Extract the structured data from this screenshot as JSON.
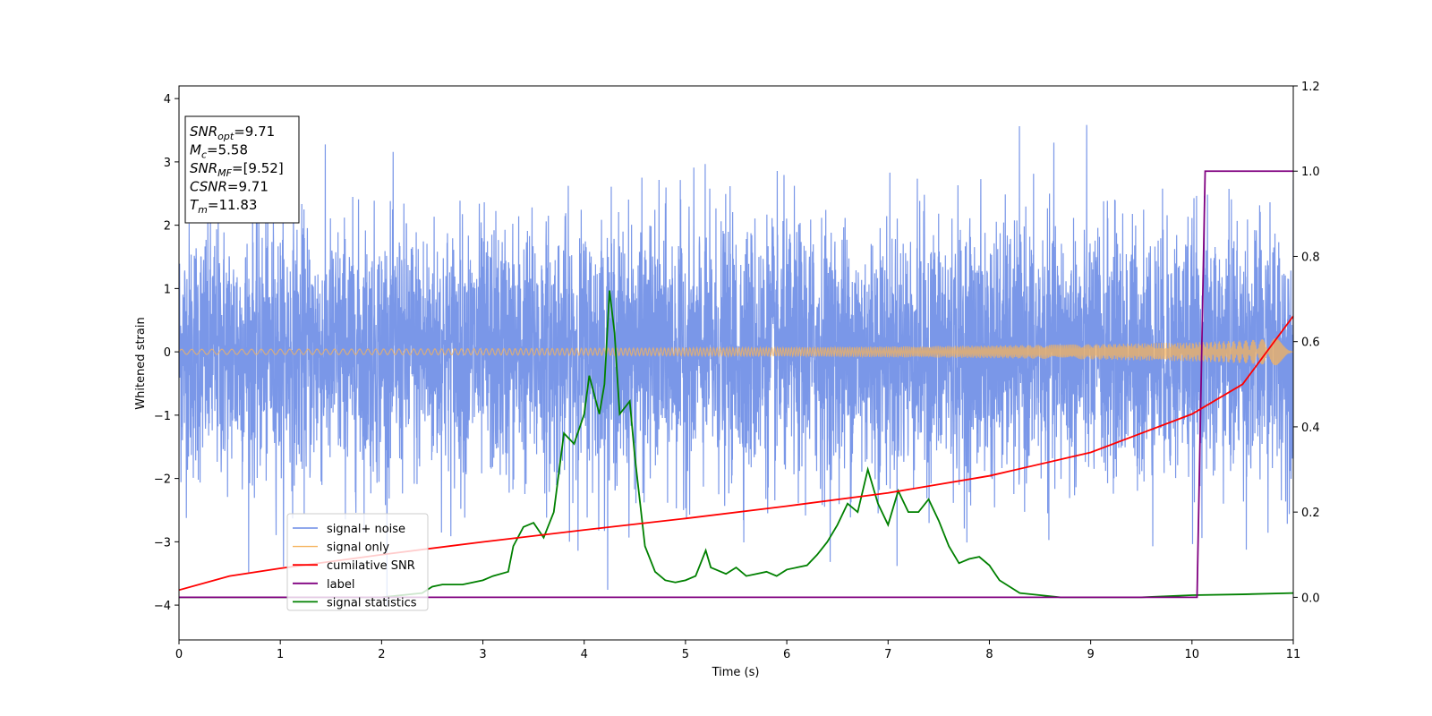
{
  "chart_data": {
    "type": "line",
    "xlabel": "Time (s)",
    "ylabel": "Whitened strain",
    "xlim": [
      0,
      11
    ],
    "ylim": [
      -4.55,
      4.2
    ],
    "y2lim": [
      -0.1,
      1.2
    ],
    "x_ticks": [
      0,
      1,
      2,
      3,
      4,
      5,
      6,
      7,
      8,
      9,
      10,
      11
    ],
    "y_ticks": [
      -4,
      -3,
      -2,
      -1,
      0,
      1,
      2,
      3,
      4
    ],
    "y2_ticks": [
      0.0,
      0.2,
      0.4,
      0.6,
      0.8,
      1.0,
      1.2
    ],
    "grid": false,
    "legend_position": "lower-left",
    "annotation": {
      "lines": [
        {
          "main": "SNR",
          "sub": "opt",
          "rest": "=9.71"
        },
        {
          "main": "M",
          "sub": "c",
          "rest": "=5.58"
        },
        {
          "main": "SNR",
          "sub": "MF",
          "rest": "=[9.52]"
        },
        {
          "main": "CSNR",
          "sub": "",
          "rest": "=9.71"
        },
        {
          "main": "T",
          "sub": "m",
          "rest": "=11.83"
        }
      ]
    },
    "series": [
      {
        "name": "signal+ noise",
        "axis": "left",
        "color": "#6b8ce6",
        "description_stats": {
          "std": 1.0,
          "min": -4.15,
          "max": 3.82
        }
      },
      {
        "name": "signal only",
        "axis": "left",
        "color": "#f5b35e",
        "envelope": {
          "x": [
            0,
            2,
            4,
            6,
            8,
            9,
            10,
            10.5,
            11
          ],
          "amplitude": [
            0.04,
            0.045,
            0.055,
            0.07,
            0.1,
            0.12,
            0.15,
            0.18,
            0.23
          ]
        }
      },
      {
        "name": "cumilative SNR",
        "axis": "right",
        "color": "#ff0000",
        "x": [
          0,
          0.5,
          1,
          2,
          3,
          4,
          5,
          6,
          7,
          8,
          9,
          10,
          10.5,
          11
        ],
        "y": [
          0.017,
          0.05,
          0.068,
          0.1,
          0.13,
          0.158,
          0.185,
          0.214,
          0.245,
          0.285,
          0.34,
          0.43,
          0.5,
          0.66
        ]
      },
      {
        "name": "label",
        "axis": "right",
        "color": "#800080",
        "x": [
          0,
          10.05,
          10.13,
          11
        ],
        "y": [
          0,
          0,
          1,
          1
        ]
      },
      {
        "name": "signal statistics",
        "axis": "right",
        "color": "#008000",
        "x": [
          0,
          1,
          2,
          2.4,
          2.5,
          2.6,
          2.8,
          3.0,
          3.1,
          3.25,
          3.3,
          3.4,
          3.5,
          3.6,
          3.7,
          3.8,
          3.9,
          4.0,
          4.05,
          4.15,
          4.2,
          4.25,
          4.3,
          4.35,
          4.45,
          4.5,
          4.6,
          4.7,
          4.8,
          4.9,
          5.0,
          5.1,
          5.2,
          5.25,
          5.3,
          5.4,
          5.5,
          5.6,
          5.7,
          5.8,
          5.9,
          6.0,
          6.1,
          6.2,
          6.3,
          6.4,
          6.5,
          6.6,
          6.7,
          6.8,
          6.9,
          7.0,
          7.1,
          7.2,
          7.3,
          7.4,
          7.5,
          7.6,
          7.7,
          7.8,
          7.9,
          8.0,
          8.1,
          8.3,
          8.5,
          8.7,
          9.0,
          9.5,
          10.0,
          10.5,
          11.0
        ],
        "y": [
          0.0,
          0.0,
          0.0,
          0.01,
          0.025,
          0.03,
          0.03,
          0.04,
          0.05,
          0.06,
          0.12,
          0.165,
          0.175,
          0.14,
          0.2,
          0.385,
          0.36,
          0.43,
          0.52,
          0.43,
          0.5,
          0.72,
          0.62,
          0.43,
          0.46,
          0.33,
          0.12,
          0.06,
          0.04,
          0.035,
          0.04,
          0.05,
          0.11,
          0.07,
          0.065,
          0.055,
          0.07,
          0.05,
          0.055,
          0.06,
          0.05,
          0.065,
          0.07,
          0.075,
          0.1,
          0.13,
          0.17,
          0.22,
          0.2,
          0.3,
          0.22,
          0.17,
          0.25,
          0.2,
          0.2,
          0.23,
          0.18,
          0.12,
          0.08,
          0.09,
          0.095,
          0.075,
          0.04,
          0.01,
          0.005,
          0.0,
          0.0,
          0.0,
          0.005,
          0.007,
          0.01
        ]
      }
    ]
  }
}
